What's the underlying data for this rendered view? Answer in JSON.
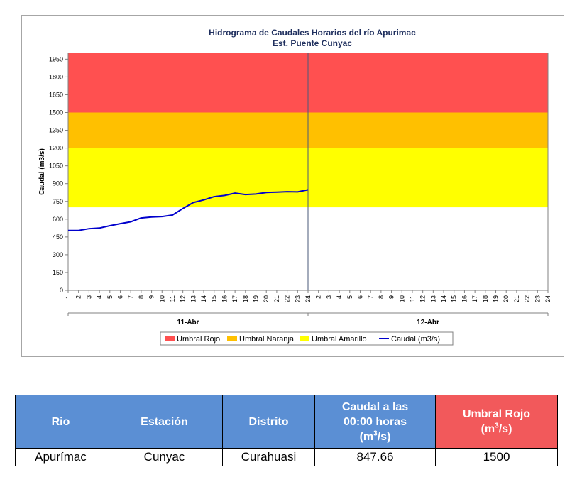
{
  "chart_data": {
    "type": "line",
    "title": "Hidrograma de Caudales Horarios del río Apurimac",
    "subtitle": "Est. Puente Cunyac",
    "ylabel": "Caudal  (m3/s)",
    "ylim": [
      0,
      2000
    ],
    "yticks": [
      "0",
      "150",
      "300",
      "450",
      "600",
      "750",
      "900",
      "1050",
      "1200",
      "1350",
      "1500",
      "1650",
      "1800",
      "1950"
    ],
    "ytick_values": [
      0,
      150,
      300,
      450,
      600,
      750,
      900,
      1050,
      1200,
      1350,
      1500,
      1650,
      1800,
      1950
    ],
    "x_hours": [
      "1",
      "2",
      "3",
      "4",
      "5",
      "6",
      "7",
      "8",
      "9",
      "10",
      "11",
      "12",
      "13",
      "14",
      "15",
      "16",
      "17",
      "18",
      "19",
      "20",
      "21",
      "22",
      "23",
      "24"
    ],
    "days": [
      "11-Abr",
      "12-Abr"
    ],
    "bands": [
      {
        "name": "Umbral Amarillo",
        "from": 700,
        "to": 1200,
        "color": "#ffff00"
      },
      {
        "name": "Umbral Naranja",
        "from": 1200,
        "to": 1500,
        "color": "#ffc000"
      },
      {
        "name": "Umbral Rojo",
        "from": 1500,
        "to": 2000,
        "color": "#ff5050"
      }
    ],
    "series": [
      {
        "name": "Caudal (m3/s)",
        "color": "#0000cc",
        "x": [
          1,
          2,
          3,
          4,
          5,
          6,
          7,
          8,
          9,
          10,
          11,
          12,
          13,
          14,
          15,
          16,
          17,
          18,
          19,
          20,
          21,
          22,
          23,
          24
        ],
        "values": [
          505,
          505,
          520,
          525,
          545,
          562,
          578,
          610,
          618,
          622,
          635,
          690,
          740,
          762,
          790,
          800,
          820,
          808,
          812,
          825,
          828,
          832,
          830,
          848
        ]
      }
    ],
    "legend": [
      "Umbral Rojo",
      "Umbral Naranja",
      "Umbral Amarillo",
      "Caudal (m3/s)"
    ],
    "legend_position": "bottom",
    "grid": false
  },
  "colors": {
    "rojo": "#ff5050",
    "naranja": "#ffc000",
    "amarillo": "#ffff00",
    "caudal": "#0000cc",
    "header_blue": "#5b8fd4",
    "header_red": "#f2595b"
  },
  "table": {
    "headers": {
      "rio": "Rio",
      "estacion": "Estación",
      "distrito": "Distrito",
      "caudal_line1": "Caudal a las",
      "caudal_line2": "00:00 horas",
      "caudal_unit_pre": "(m",
      "caudal_unit_exp": "3",
      "caudal_unit_post": "/s)",
      "umbral_line1": "Umbral Rojo",
      "umbral_unit_pre": "(m",
      "umbral_unit_exp": "3",
      "umbral_unit_post": "/s)"
    },
    "row": {
      "rio": "Apurímac",
      "estacion": "Cunyac",
      "distrito": "Curahuasi",
      "caudal": "847.66",
      "umbral": "1500"
    }
  }
}
